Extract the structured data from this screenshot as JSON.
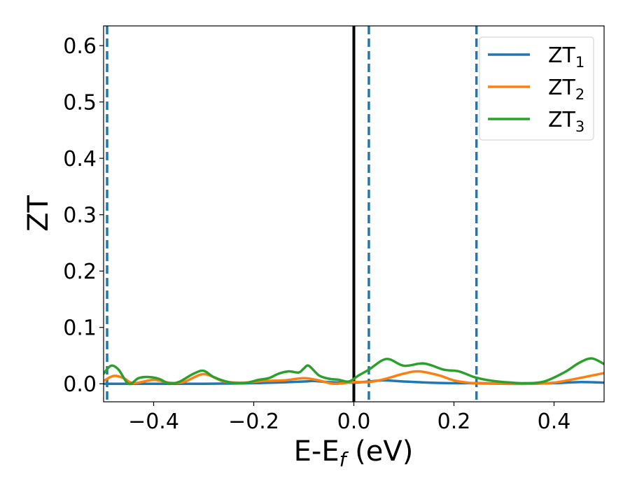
{
  "chart_data": {
    "type": "line",
    "xlabel": "E-E",
    "xlabel_sub": "f",
    "xlabel_unit": " (eV)",
    "ylabel": "ZT",
    "xlim": [
      -0.5,
      0.5
    ],
    "ylim": [
      -0.032,
      0.635
    ],
    "xticks": [
      -0.4,
      -0.2,
      0.0,
      0.2,
      0.4
    ],
    "xtick_labels": [
      "−0.4",
      "−0.2",
      "0.0",
      "0.2",
      "0.4"
    ],
    "yticks": [
      0.0,
      0.1,
      0.2,
      0.3,
      0.4,
      0.5,
      0.6
    ],
    "ytick_labels": [
      "0.0",
      "0.1",
      "0.2",
      "0.3",
      "0.4",
      "0.5",
      "0.6"
    ],
    "grid": false,
    "legend_position": "top-right",
    "vlines": [
      {
        "x": 0.0,
        "color": "#000000",
        "style": "solid"
      },
      {
        "x": -0.493,
        "color": "#1f77b4",
        "style": "dashed"
      },
      {
        "x": 0.03,
        "color": "#1f77b4",
        "style": "dashed"
      },
      {
        "x": 0.245,
        "color": "#1f77b4",
        "style": "dashed"
      }
    ],
    "series": [
      {
        "name": "ZT",
        "name_sub": "1",
        "color": "#1f77b4",
        "x": [
          -0.5,
          -0.4,
          -0.3,
          -0.2,
          -0.1,
          -0.08,
          -0.05,
          0.0,
          0.03,
          0.06,
          0.1,
          0.15,
          0.2,
          0.25,
          0.3,
          0.35,
          0.4,
          0.45,
          0.5
        ],
        "y": [
          0.0,
          0.0,
          0.0,
          0.001,
          0.004,
          0.005,
          0.003,
          0.002,
          0.004,
          0.006,
          0.004,
          0.002,
          0.001,
          0.001,
          0.0,
          0.0,
          0.001,
          0.003,
          0.002
        ]
      },
      {
        "name": "ZT",
        "name_sub": "2",
        "color": "#ff7f0e",
        "x": [
          -0.5,
          -0.48,
          -0.46,
          -0.44,
          -0.4,
          -0.37,
          -0.34,
          -0.3,
          -0.26,
          -0.22,
          -0.18,
          -0.14,
          -0.1,
          -0.07,
          -0.04,
          0.0,
          0.03,
          0.06,
          0.1,
          0.13,
          0.17,
          0.2,
          0.24,
          0.3,
          0.35,
          0.4,
          0.45,
          0.5
        ],
        "y": [
          0.005,
          0.014,
          0.01,
          0.001,
          0.007,
          0.002,
          0.003,
          0.017,
          0.004,
          0.002,
          0.005,
          0.006,
          0.01,
          0.006,
          0.0,
          0.003,
          0.003,
          0.008,
          0.018,
          0.022,
          0.015,
          0.006,
          0.001,
          0.0,
          0.0,
          0.002,
          0.01,
          0.019
        ]
      },
      {
        "name": "ZT",
        "name_sub": "3",
        "color": "#2ca02c",
        "x": [
          -0.5,
          -0.485,
          -0.47,
          -0.45,
          -0.43,
          -0.41,
          -0.39,
          -0.37,
          -0.35,
          -0.32,
          -0.3,
          -0.28,
          -0.25,
          -0.22,
          -0.19,
          -0.17,
          -0.15,
          -0.13,
          -0.11,
          -0.1,
          -0.09,
          -0.07,
          -0.05,
          -0.03,
          -0.01,
          0.01,
          0.03,
          0.065,
          0.1,
          0.14,
          0.18,
          0.21,
          0.24,
          0.27,
          0.3,
          0.34,
          0.38,
          0.42,
          0.45,
          0.475,
          0.5
        ],
        "y": [
          0.018,
          0.032,
          0.025,
          0.0,
          0.01,
          0.012,
          0.009,
          0.001,
          0.003,
          0.018,
          0.023,
          0.012,
          0.003,
          0.001,
          0.007,
          0.01,
          0.018,
          0.022,
          0.02,
          0.027,
          0.032,
          0.015,
          0.009,
          0.007,
          0.004,
          0.015,
          0.025,
          0.044,
          0.032,
          0.036,
          0.025,
          0.022,
          0.012,
          0.006,
          0.003,
          0.001,
          0.004,
          0.02,
          0.037,
          0.045,
          0.035
        ]
      }
    ]
  }
}
